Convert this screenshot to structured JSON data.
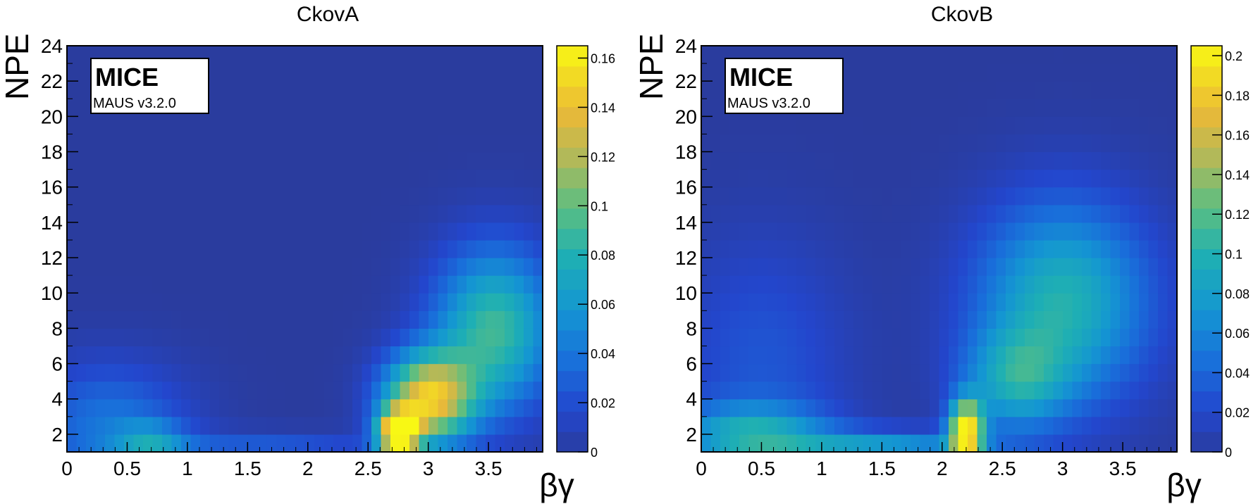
{
  "chart_data": [
    {
      "type": "heatmap",
      "title": "CkovA",
      "xlabel": "βγ",
      "ylabel": "NPE",
      "xlim": [
        0,
        3.95
      ],
      "ylim": [
        1,
        24
      ],
      "xticks": [
        "0",
        "0.5",
        "1",
        "1.5",
        "2",
        "2.5",
        "3",
        "3.5"
      ],
      "yticks": [
        "2",
        "4",
        "6",
        "8",
        "10",
        "12",
        "14",
        "16",
        "18",
        "20",
        "22",
        "24"
      ],
      "zlim": [
        0,
        0.165
      ],
      "zticks": [
        "0",
        "0.02",
        "0.04",
        "0.06",
        "0.08",
        "0.1",
        "0.12",
        "0.14",
        "0.16"
      ],
      "grid": false,
      "legend": "right colour bar",
      "annotation": {
        "experiment": "MICE",
        "software": "MAUS v3.2.0"
      },
      "blobs": [
        {
          "x": 3.0,
          "y": 4.0,
          "sx": 0.26,
          "sy": 1.8,
          "z": 0.14
        },
        {
          "x": 2.75,
          "y": 2.1,
          "sx": 0.12,
          "sy": 0.9,
          "z": 0.16
        },
        {
          "x": 3.55,
          "y": 8.0,
          "sx": 0.35,
          "sy": 3.2,
          "z": 0.09
        },
        {
          "x": 0.35,
          "y": 2.5,
          "sx": 0.45,
          "sy": 2.5,
          "z": 0.04
        },
        {
          "x": 0.7,
          "y": 1.6,
          "sx": 0.2,
          "sy": 0.8,
          "z": 0.04
        },
        {
          "x": 1.6,
          "y": 1.5,
          "sx": 0.7,
          "sy": 0.5,
          "z": 0.025
        }
      ]
    },
    {
      "type": "heatmap",
      "title": "CkovB",
      "xlabel": "βγ",
      "ylabel": "NPE",
      "xlim": [
        0,
        3.95
      ],
      "ylim": [
        1,
        24
      ],
      "xticks": [
        "0",
        "0.5",
        "1",
        "1.5",
        "2",
        "2.5",
        "3",
        "3.5"
      ],
      "yticks": [
        "2",
        "4",
        "6",
        "8",
        "10",
        "12",
        "14",
        "16",
        "18",
        "20",
        "22",
        "24"
      ],
      "zlim": [
        0,
        0.205
      ],
      "zticks": [
        "0",
        "0.02",
        "0.04",
        "0.06",
        "0.08",
        "0.1",
        "0.12",
        "0.14",
        "0.16",
        "0.18",
        "0.2"
      ],
      "grid": false,
      "legend": "right colour bar",
      "annotation": {
        "experiment": "MICE",
        "software": "MAUS v3.2.0"
      },
      "blobs": [
        {
          "x": 2.2,
          "y": 2.2,
          "sx": 0.1,
          "sy": 1.2,
          "z": 0.19
        },
        {
          "x": 3.0,
          "y": 9.5,
          "sx": 0.5,
          "sy": 4.0,
          "z": 0.1
        },
        {
          "x": 0.4,
          "y": 2.0,
          "sx": 0.45,
          "sy": 1.2,
          "z": 0.08
        },
        {
          "x": 1.5,
          "y": 1.6,
          "sx": 0.6,
          "sy": 0.5,
          "z": 0.07
        },
        {
          "x": 0.5,
          "y": 6.0,
          "sx": 0.5,
          "sy": 5.0,
          "z": 0.03
        },
        {
          "x": 2.6,
          "y": 5.0,
          "sx": 0.3,
          "sy": 2.0,
          "z": 0.07
        }
      ]
    }
  ]
}
